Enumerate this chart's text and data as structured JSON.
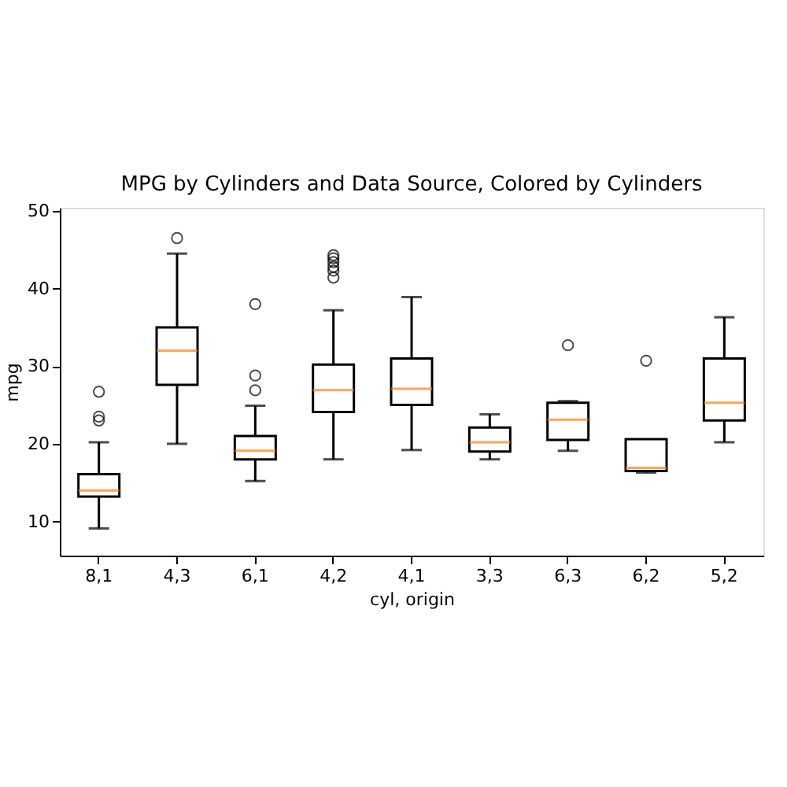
{
  "chart_data": {
    "type": "box",
    "title": "MPG by Cylinders and Data Source, Colored by Cylinders",
    "xlabel": "cyl, origin",
    "ylabel": "mpg",
    "categories": [
      "8,1",
      "4,3",
      "6,1",
      "4,2",
      "4,1",
      "3,3",
      "6,3",
      "6,2",
      "5,2"
    ],
    "boxes": [
      {
        "low": 9.1,
        "q1": 13.2,
        "median": 14.0,
        "q3": 16.1,
        "high": 20.2,
        "outliers": [
          23.0,
          23.5,
          26.7
        ]
      },
      {
        "low": 20.0,
        "q1": 27.6,
        "median": 32.0,
        "q3": 35.0,
        "high": 44.5,
        "outliers": [
          46.5
        ]
      },
      {
        "low": 15.2,
        "q1": 18.0,
        "median": 19.1,
        "q3": 21.0,
        "high": 24.9,
        "outliers": [
          26.9,
          28.8,
          38.0
        ]
      },
      {
        "low": 18.0,
        "q1": 24.1,
        "median": 26.9,
        "q3": 30.2,
        "high": 37.2,
        "outliers": [
          41.4,
          42.3,
          42.8,
          43.4,
          43.9,
          44.3
        ]
      },
      {
        "low": 19.2,
        "q1": 25.0,
        "median": 27.1,
        "q3": 31.0,
        "high": 38.9
      },
      {
        "low": 18.0,
        "q1": 19.0,
        "median": 20.2,
        "q3": 22.1,
        "high": 23.8
      },
      {
        "low": 19.1,
        "q1": 20.5,
        "median": 23.1,
        "q3": 25.3,
        "high": 25.5,
        "outliers": [
          32.7
        ]
      },
      {
        "low": 16.3,
        "q1": 16.5,
        "median": 16.9,
        "q3": 20.6,
        "high": 20.6,
        "outliers": [
          30.7
        ]
      },
      {
        "low": 20.2,
        "q1": 23.0,
        "median": 25.3,
        "q3": 31.0,
        "high": 36.3
      }
    ],
    "ylim": [
      5.6,
      50.4
    ],
    "yticks": [
      10,
      20,
      30,
      40,
      50
    ],
    "grid": false
  }
}
